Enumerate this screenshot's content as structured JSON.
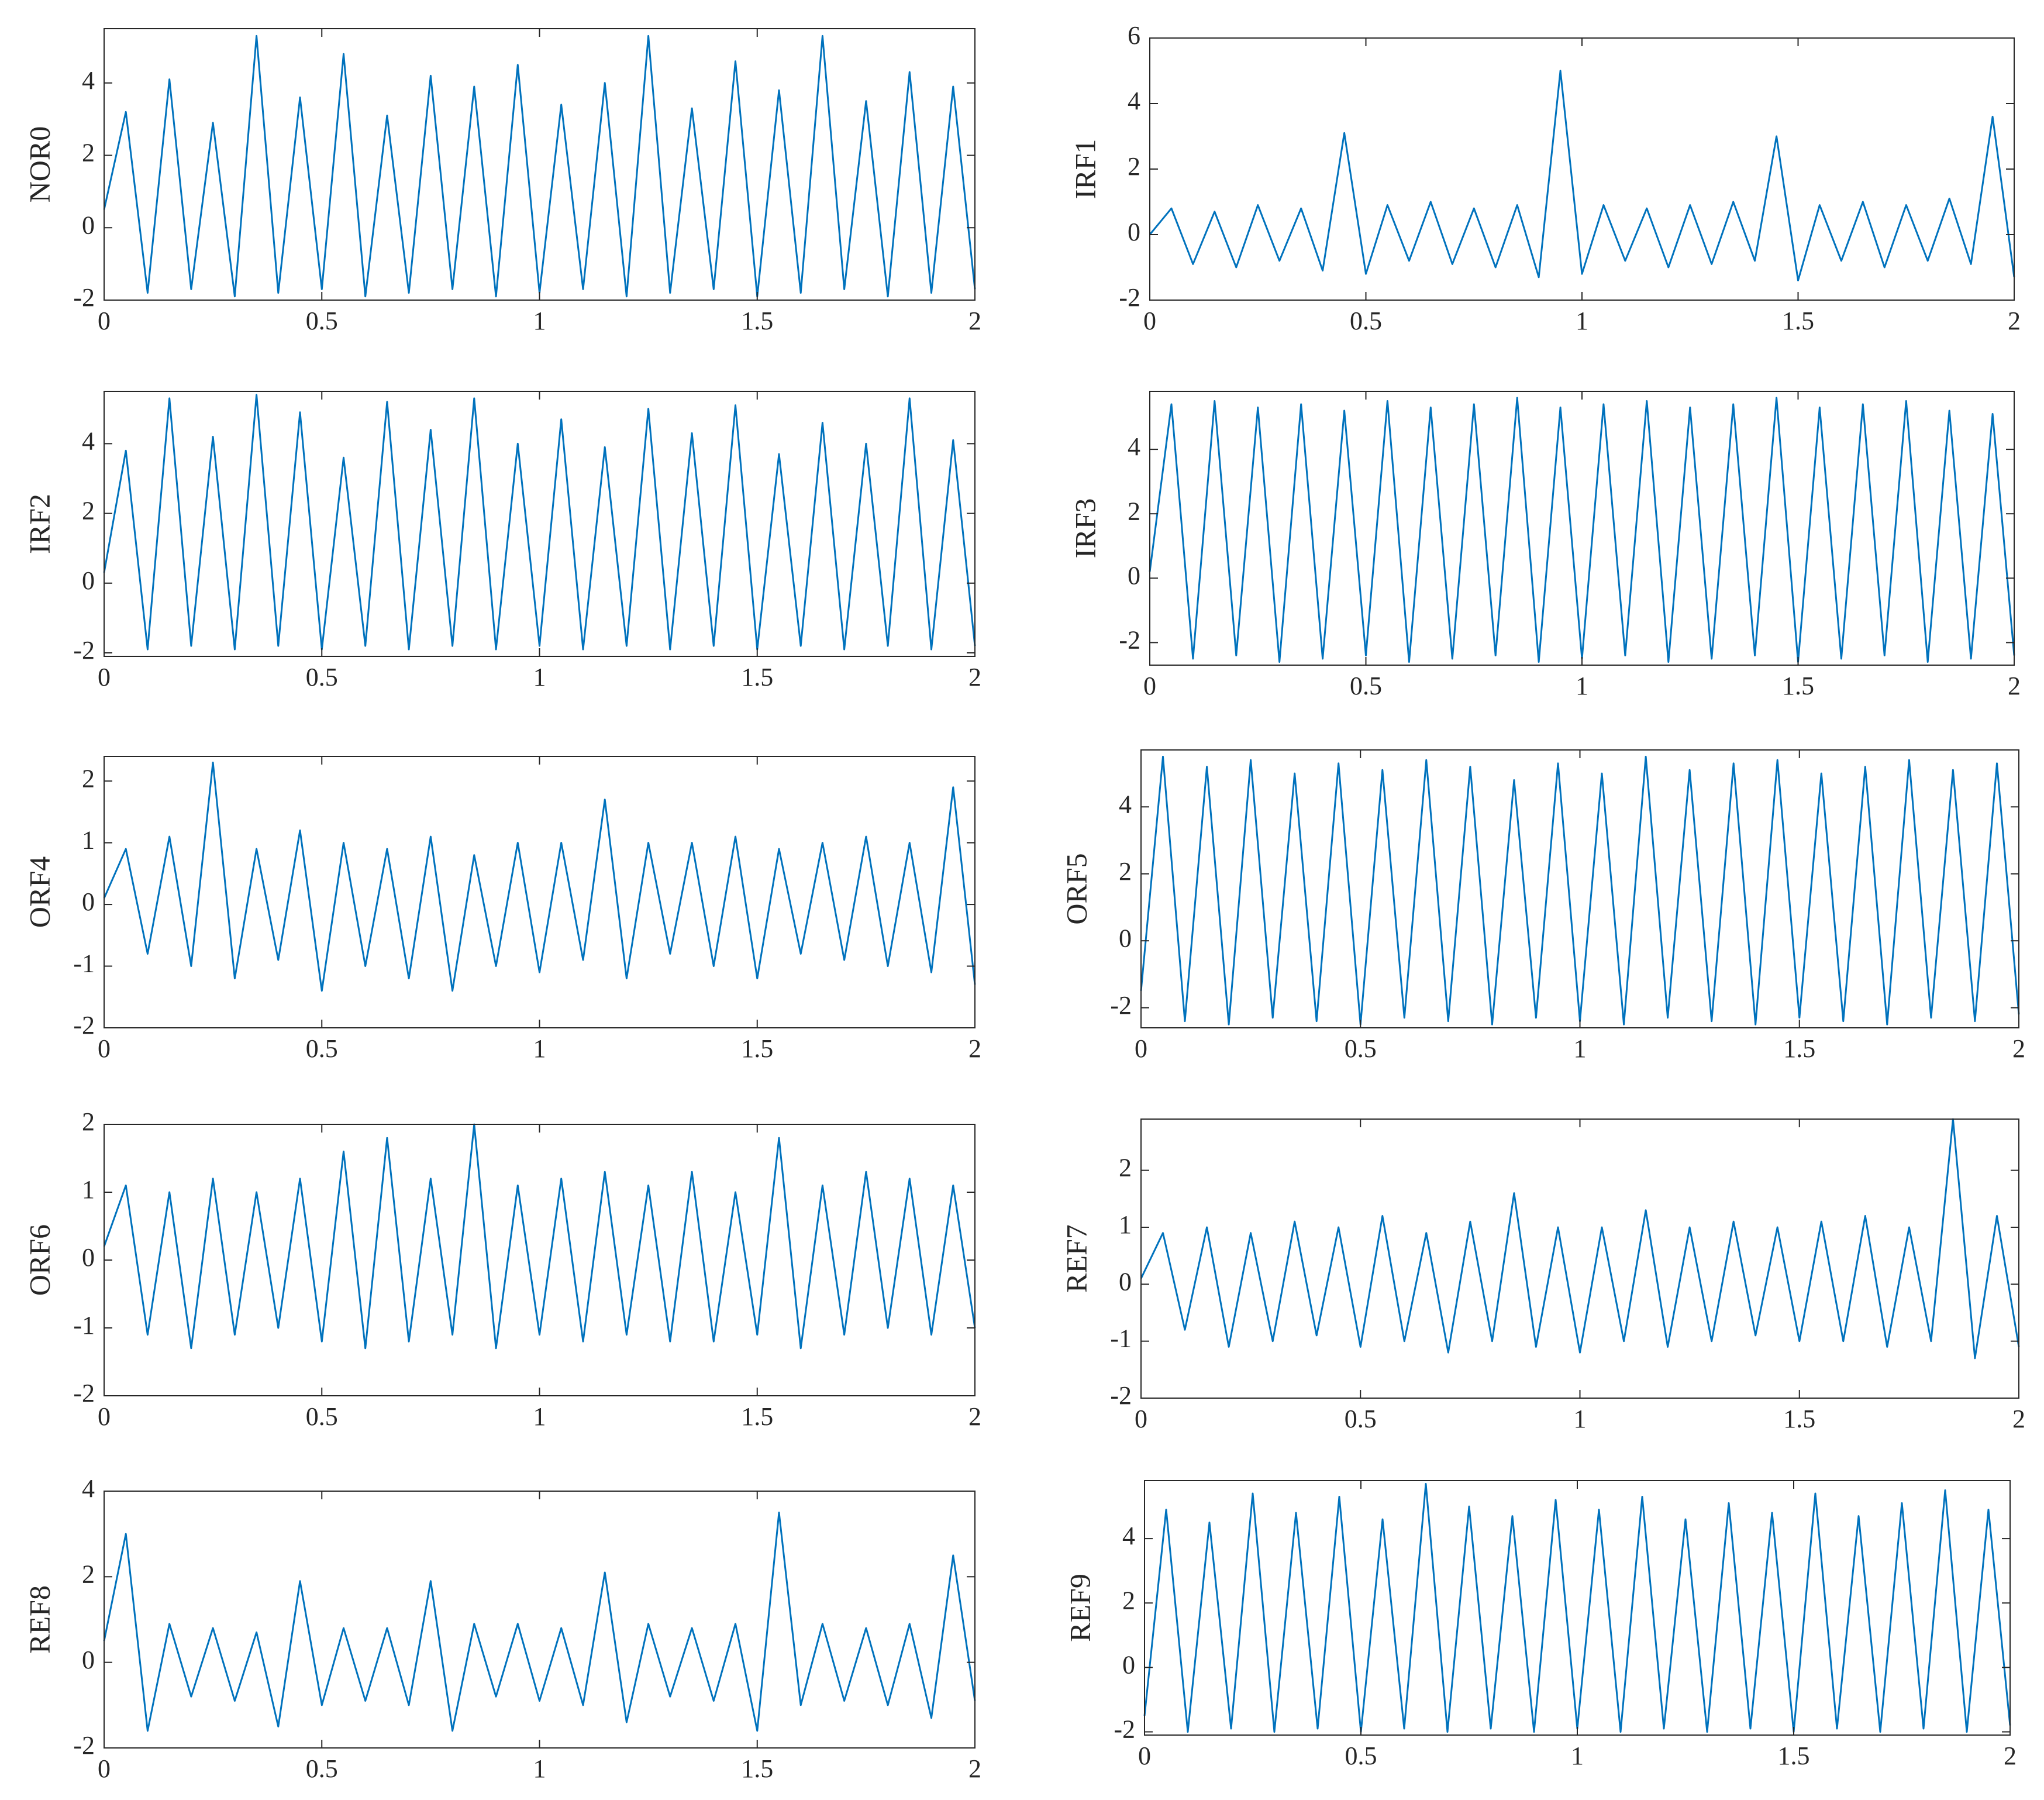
{
  "chart_data": [
    {
      "type": "line",
      "ylabel": "NOR0",
      "color": "#0072bd",
      "xlim": [
        0,
        2
      ],
      "ylim": [
        -2,
        5.5
      ],
      "xticks": [
        0,
        0.5,
        1,
        1.5,
        2
      ],
      "yticks": [
        -2,
        0,
        2,
        4
      ],
      "x": [
        0,
        0.05,
        0.1,
        0.15,
        0.2,
        0.25,
        0.3,
        0.35,
        0.4,
        0.45,
        0.5,
        0.55,
        0.6,
        0.65,
        0.7,
        0.75,
        0.8,
        0.85,
        0.9,
        0.95,
        1,
        1.05,
        1.1,
        1.15,
        1.2,
        1.25,
        1.3,
        1.35,
        1.4,
        1.45,
        1.5,
        1.55,
        1.6,
        1.65,
        1.7,
        1.75,
        1.8,
        1.85,
        1.9,
        1.95,
        2
      ],
      "values": [
        0.5,
        3.2,
        -1.8,
        4.1,
        -1.7,
        2.9,
        -1.9,
        5.3,
        -1.8,
        3.6,
        -1.7,
        4.8,
        -1.9,
        3.1,
        -1.8,
        4.2,
        -1.7,
        3.9,
        -1.9,
        4.5,
        -1.8,
        3.4,
        -1.7,
        4.0,
        -1.9,
        5.3,
        -1.8,
        3.3,
        -1.7,
        4.6,
        -1.9,
        3.8,
        -1.8,
        5.3,
        -1.7,
        3.5,
        -1.9,
        4.3,
        -1.8,
        3.9,
        -1.7
      ]
    },
    {
      "type": "line",
      "ylabel": "IRF1",
      "color": "#0072bd",
      "xlim": [
        0,
        2
      ],
      "ylim": [
        -2,
        6
      ],
      "xticks": [
        0,
        0.5,
        1,
        1.5,
        2
      ],
      "yticks": [
        -2,
        0,
        2,
        4,
        6
      ],
      "x": [
        0,
        0.05,
        0.1,
        0.15,
        0.2,
        0.25,
        0.3,
        0.35,
        0.4,
        0.45,
        0.5,
        0.55,
        0.6,
        0.65,
        0.7,
        0.75,
        0.8,
        0.85,
        0.9,
        0.95,
        1,
        1.05,
        1.1,
        1.15,
        1.2,
        1.25,
        1.3,
        1.35,
        1.4,
        1.45,
        1.5,
        1.55,
        1.6,
        1.65,
        1.7,
        1.75,
        1.8,
        1.85,
        1.9,
        1.95,
        2
      ],
      "values": [
        0,
        0.8,
        -0.9,
        0.7,
        -1.0,
        0.9,
        -0.8,
        0.8,
        -1.1,
        3.1,
        -1.2,
        0.9,
        -0.8,
        1.0,
        -0.9,
        0.8,
        -1.0,
        0.9,
        -1.3,
        5.0,
        -1.2,
        0.9,
        -0.8,
        0.8,
        -1.0,
        0.9,
        -0.9,
        1.0,
        -0.8,
        3.0,
        -1.4,
        0.9,
        -0.8,
        1.0,
        -1.0,
        0.9,
        -0.8,
        1.1,
        -0.9,
        3.6,
        -1.3
      ]
    },
    {
      "type": "line",
      "ylabel": "IRF2",
      "color": "#0072bd",
      "xlim": [
        0,
        2
      ],
      "ylim": [
        -2.1,
        5.5
      ],
      "xticks": [
        0,
        0.5,
        1,
        1.5,
        2
      ],
      "yticks": [
        -2,
        0,
        2,
        4
      ],
      "x": [
        0,
        0.05,
        0.1,
        0.15,
        0.2,
        0.25,
        0.3,
        0.35,
        0.4,
        0.45,
        0.5,
        0.55,
        0.6,
        0.65,
        0.7,
        0.75,
        0.8,
        0.85,
        0.9,
        0.95,
        1,
        1.05,
        1.1,
        1.15,
        1.2,
        1.25,
        1.3,
        1.35,
        1.4,
        1.45,
        1.5,
        1.55,
        1.6,
        1.65,
        1.7,
        1.75,
        1.8,
        1.85,
        1.9,
        1.95,
        2
      ],
      "values": [
        0.3,
        3.8,
        -1.9,
        5.3,
        -1.8,
        4.2,
        -1.9,
        5.4,
        -1.8,
        4.9,
        -1.9,
        3.6,
        -1.8,
        5.2,
        -1.9,
        4.4,
        -1.8,
        5.3,
        -1.9,
        4.0,
        -1.8,
        4.7,
        -1.9,
        3.9,
        -1.8,
        5.0,
        -1.9,
        4.3,
        -1.8,
        5.1,
        -1.9,
        3.7,
        -1.8,
        4.6,
        -1.9,
        4.0,
        -1.8,
        5.3,
        -1.9,
        4.1,
        -1.8
      ]
    },
    {
      "type": "line",
      "ylabel": "IRF3",
      "color": "#0072bd",
      "xlim": [
        0,
        2
      ],
      "ylim": [
        -2.7,
        5.8
      ],
      "xticks": [
        0,
        0.5,
        1,
        1.5,
        2
      ],
      "yticks": [
        -2,
        0,
        2,
        4
      ],
      "x": [
        0,
        0.05,
        0.1,
        0.15,
        0.2,
        0.25,
        0.3,
        0.35,
        0.4,
        0.45,
        0.5,
        0.55,
        0.6,
        0.65,
        0.7,
        0.75,
        0.8,
        0.85,
        0.9,
        0.95,
        1,
        1.05,
        1.1,
        1.15,
        1.2,
        1.25,
        1.3,
        1.35,
        1.4,
        1.45,
        1.5,
        1.55,
        1.6,
        1.65,
        1.7,
        1.75,
        1.8,
        1.85,
        1.9,
        1.95,
        2
      ],
      "values": [
        0.2,
        5.4,
        -2.5,
        5.5,
        -2.4,
        5.3,
        -2.6,
        5.4,
        -2.5,
        5.2,
        -2.4,
        5.5,
        -2.6,
        5.3,
        -2.5,
        5.4,
        -2.4,
        5.6,
        -2.6,
        5.3,
        -2.5,
        5.4,
        -2.4,
        5.5,
        -2.6,
        5.3,
        -2.5,
        5.4,
        -2.4,
        5.6,
        -2.6,
        5.3,
        -2.5,
        5.4,
        -2.4,
        5.5,
        -2.6,
        5.2,
        -2.5,
        5.1,
        -2.4
      ]
    },
    {
      "type": "line",
      "ylabel": "ORF4",
      "color": "#0072bd",
      "xlim": [
        0,
        2
      ],
      "ylim": [
        -2,
        2.4
      ],
      "xticks": [
        0,
        0.5,
        1,
        1.5,
        2
      ],
      "yticks": [
        -2,
        -1,
        0,
        1,
        2
      ],
      "x": [
        0,
        0.05,
        0.1,
        0.15,
        0.2,
        0.25,
        0.3,
        0.35,
        0.4,
        0.45,
        0.5,
        0.55,
        0.6,
        0.65,
        0.7,
        0.75,
        0.8,
        0.85,
        0.9,
        0.95,
        1,
        1.05,
        1.1,
        1.15,
        1.2,
        1.25,
        1.3,
        1.35,
        1.4,
        1.45,
        1.5,
        1.55,
        1.6,
        1.65,
        1.7,
        1.75,
        1.8,
        1.85,
        1.9,
        1.95,
        2
      ],
      "values": [
        0.1,
        0.9,
        -0.8,
        1.1,
        -1.0,
        2.3,
        -1.2,
        0.9,
        -0.9,
        1.2,
        -1.4,
        1.0,
        -1.0,
        0.9,
        -1.2,
        1.1,
        -1.4,
        0.8,
        -1.0,
        1.0,
        -1.1,
        1.0,
        -0.9,
        1.7,
        -1.2,
        1.0,
        -0.8,
        1.0,
        -1.0,
        1.1,
        -1.2,
        0.9,
        -0.8,
        1.0,
        -0.9,
        1.1,
        -1.0,
        1.0,
        -1.1,
        1.9,
        -1.3
      ]
    },
    {
      "type": "line",
      "ylabel": "ORF5",
      "color": "#0072bd",
      "xlim": [
        0,
        2
      ],
      "ylim": [
        -2.6,
        5.7
      ],
      "xticks": [
        0,
        0.5,
        1,
        1.5,
        2
      ],
      "yticks": [
        -2,
        0,
        2,
        4
      ],
      "x": [
        0,
        0.05,
        0.1,
        0.15,
        0.2,
        0.25,
        0.3,
        0.35,
        0.4,
        0.45,
        0.5,
        0.55,
        0.6,
        0.65,
        0.7,
        0.75,
        0.8,
        0.85,
        0.9,
        0.95,
        1,
        1.05,
        1.1,
        1.15,
        1.2,
        1.25,
        1.3,
        1.35,
        1.4,
        1.45,
        1.5,
        1.55,
        1.6,
        1.65,
        1.7,
        1.75,
        1.8,
        1.85,
        1.9,
        1.95,
        2
      ],
      "values": [
        -1.5,
        5.5,
        -2.4,
        5.2,
        -2.5,
        5.4,
        -2.3,
        5.0,
        -2.4,
        5.3,
        -2.5,
        5.1,
        -2.3,
        5.4,
        -2.4,
        5.2,
        -2.5,
        4.8,
        -2.3,
        5.3,
        -2.4,
        5.0,
        -2.5,
        5.5,
        -2.3,
        5.1,
        -2.4,
        5.3,
        -2.5,
        5.4,
        -2.3,
        5.0,
        -2.4,
        5.2,
        -2.5,
        5.4,
        -2.3,
        5.1,
        -2.4,
        5.3,
        -2.2
      ]
    },
    {
      "type": "line",
      "ylabel": "ORF6",
      "color": "#0072bd",
      "xlim": [
        0,
        2
      ],
      "ylim": [
        -2,
        2
      ],
      "xticks": [
        0,
        0.5,
        1,
        1.5,
        2
      ],
      "yticks": [
        -2,
        -1,
        0,
        1,
        2
      ],
      "x": [
        0,
        0.05,
        0.1,
        0.15,
        0.2,
        0.25,
        0.3,
        0.35,
        0.4,
        0.45,
        0.5,
        0.55,
        0.6,
        0.65,
        0.7,
        0.75,
        0.8,
        0.85,
        0.9,
        0.95,
        1,
        1.05,
        1.1,
        1.15,
        1.2,
        1.25,
        1.3,
        1.35,
        1.4,
        1.45,
        1.5,
        1.55,
        1.6,
        1.65,
        1.7,
        1.75,
        1.8,
        1.85,
        1.9,
        1.95,
        2
      ],
      "values": [
        0.2,
        1.1,
        -1.1,
        1.0,
        -1.3,
        1.2,
        -1.1,
        1.0,
        -1.0,
        1.2,
        -1.2,
        1.6,
        -1.3,
        1.8,
        -1.2,
        1.2,
        -1.1,
        2.0,
        -1.3,
        1.1,
        -1.1,
        1.2,
        -1.2,
        1.3,
        -1.1,
        1.1,
        -1.2,
        1.3,
        -1.2,
        1.0,
        -1.1,
        1.8,
        -1.3,
        1.1,
        -1.1,
        1.3,
        -1.0,
        1.2,
        -1.1,
        1.1,
        -1.0
      ]
    },
    {
      "type": "line",
      "ylabel": "REF7",
      "color": "#0072bd",
      "xlim": [
        0,
        2
      ],
      "ylim": [
        -2,
        2.9
      ],
      "xticks": [
        0,
        0.5,
        1,
        1.5,
        2
      ],
      "yticks": [
        -2,
        -1,
        0,
        1,
        2
      ],
      "x": [
        0,
        0.05,
        0.1,
        0.15,
        0.2,
        0.25,
        0.3,
        0.35,
        0.4,
        0.45,
        0.5,
        0.55,
        0.6,
        0.65,
        0.7,
        0.75,
        0.8,
        0.85,
        0.9,
        0.95,
        1,
        1.05,
        1.1,
        1.15,
        1.2,
        1.25,
        1.3,
        1.35,
        1.4,
        1.45,
        1.5,
        1.55,
        1.6,
        1.65,
        1.7,
        1.75,
        1.8,
        1.85,
        1.9,
        1.95,
        2
      ],
      "values": [
        0.1,
        0.9,
        -0.8,
        1.0,
        -1.1,
        0.9,
        -1.0,
        1.1,
        -0.9,
        1.0,
        -1.1,
        1.2,
        -1.0,
        0.9,
        -1.2,
        1.1,
        -1.0,
        1.6,
        -1.1,
        1.0,
        -1.2,
        1.0,
        -1.0,
        1.3,
        -1.1,
        1.0,
        -1.0,
        1.1,
        -0.9,
        1.0,
        -1.0,
        1.1,
        -1.0,
        1.2,
        -1.1,
        1.0,
        -1.0,
        2.9,
        -1.3,
        1.2,
        -1.1
      ]
    },
    {
      "type": "line",
      "ylabel": "REF8",
      "color": "#0072bd",
      "xlim": [
        0,
        2
      ],
      "ylim": [
        -2,
        4
      ],
      "xticks": [
        0,
        0.5,
        1,
        1.5,
        2
      ],
      "yticks": [
        -2,
        0,
        2,
        4
      ],
      "x": [
        0,
        0.05,
        0.1,
        0.15,
        0.2,
        0.25,
        0.3,
        0.35,
        0.4,
        0.45,
        0.5,
        0.55,
        0.6,
        0.65,
        0.7,
        0.75,
        0.8,
        0.85,
        0.9,
        0.95,
        1,
        1.05,
        1.1,
        1.15,
        1.2,
        1.25,
        1.3,
        1.35,
        1.4,
        1.45,
        1.5,
        1.55,
        1.6,
        1.65,
        1.7,
        1.75,
        1.8,
        1.85,
        1.9,
        1.95,
        2
      ],
      "values": [
        0.5,
        3.0,
        -1.6,
        0.9,
        -0.8,
        0.8,
        -0.9,
        0.7,
        -1.5,
        1.9,
        -1.0,
        0.8,
        -0.9,
        0.8,
        -1.0,
        1.9,
        -1.6,
        0.9,
        -0.8,
        0.9,
        -0.9,
        0.8,
        -1.0,
        2.1,
        -1.4,
        0.9,
        -0.8,
        0.8,
        -0.9,
        0.9,
        -1.6,
        3.5,
        -1.0,
        0.9,
        -0.9,
        0.8,
        -1.0,
        0.9,
        -1.3,
        2.5,
        -0.9
      ]
    },
    {
      "type": "line",
      "ylabel": "REF9",
      "color": "#0072bd",
      "xlim": [
        0,
        2
      ],
      "ylim": [
        -2.1,
        5.8
      ],
      "xticks": [
        0,
        0.5,
        1,
        1.5,
        2
      ],
      "yticks": [
        -2,
        0,
        2,
        4
      ],
      "x": [
        0,
        0.05,
        0.1,
        0.15,
        0.2,
        0.25,
        0.3,
        0.35,
        0.4,
        0.45,
        0.5,
        0.55,
        0.6,
        0.65,
        0.7,
        0.75,
        0.8,
        0.85,
        0.9,
        0.95,
        1,
        1.05,
        1.1,
        1.15,
        1.2,
        1.25,
        1.3,
        1.35,
        1.4,
        1.45,
        1.5,
        1.55,
        1.6,
        1.65,
        1.7,
        1.75,
        1.8,
        1.85,
        1.9,
        1.95,
        2
      ],
      "values": [
        -1.5,
        4.9,
        -2.0,
        4.5,
        -1.9,
        5.4,
        -2.0,
        4.8,
        -1.9,
        5.3,
        -2.0,
        4.6,
        -1.9,
        5.7,
        -2.0,
        5.0,
        -1.9,
        4.7,
        -2.0,
        5.2,
        -1.9,
        4.9,
        -2.0,
        5.3,
        -1.9,
        4.6,
        -2.0,
        5.1,
        -1.9,
        4.8,
        -2.0,
        5.4,
        -1.9,
        4.7,
        -2.0,
        5.1,
        -1.9,
        5.5,
        -2.0,
        4.9,
        -1.8
      ]
    }
  ]
}
